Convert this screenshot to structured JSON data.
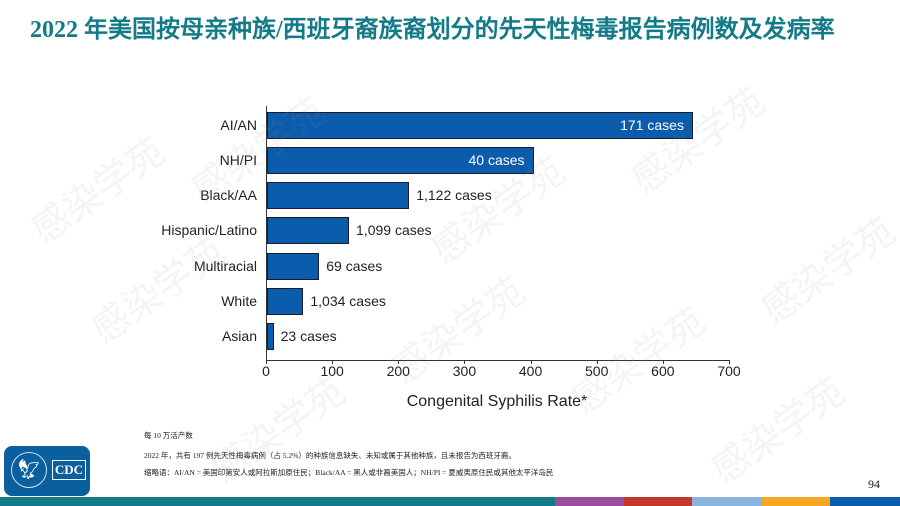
{
  "title": "2022 年美国按母亲种族/西班牙裔族裔划分的先天性梅毒报告病例数及发病率",
  "chart_data": {
    "type": "bar",
    "orientation": "horizontal",
    "title": "2022 年美国按母亲种族/西班牙裔族裔划分的先天性梅毒报告病例数及发病率",
    "xlabel": "Congenital Syphilis Rate*",
    "ylabel": "",
    "xlim": [
      0,
      700
    ],
    "xticks": [
      "0",
      "100",
      "200",
      "300",
      "400",
      "500",
      "600",
      "700"
    ],
    "grid": false,
    "categories": [
      "AI/AN",
      "NH/PI",
      "Black/AA",
      "Hispanic/Latino",
      "Multiracial",
      "White",
      "Asian"
    ],
    "values": [
      644,
      403,
      215,
      124,
      79,
      55,
      10
    ],
    "data_labels": [
      "171 cases",
      "40 cases",
      "1,122 cases",
      "1,099 cases",
      "69 cases",
      "1,034 cases",
      "23 cases"
    ],
    "bar_color": "#0b5cad"
  },
  "notes": {
    "line1": "每 10 万活产数",
    "line2": "2022 年，共有 197 例先天性梅毒病例（占 5.2%）的种族信息缺失、未知或属于其他种族，且未报告为西班牙裔。",
    "line3": "缩略语：AI/AN = 美国印第安人或阿拉斯加原住民；Black/AA = 黑人或非裔美国人；NH/PI = 夏威夷原住民或其他太平洋岛民"
  },
  "logo": {
    "text": "CDC",
    "emblem": "hhs-eagle-icon"
  },
  "page_number": "94",
  "footer_colors": [
    "#137b87",
    "#9a4e9e",
    "#c0392b",
    "#8ab4dd",
    "#f5a623",
    "#0b5cad"
  ],
  "watermark": "感染学苑"
}
